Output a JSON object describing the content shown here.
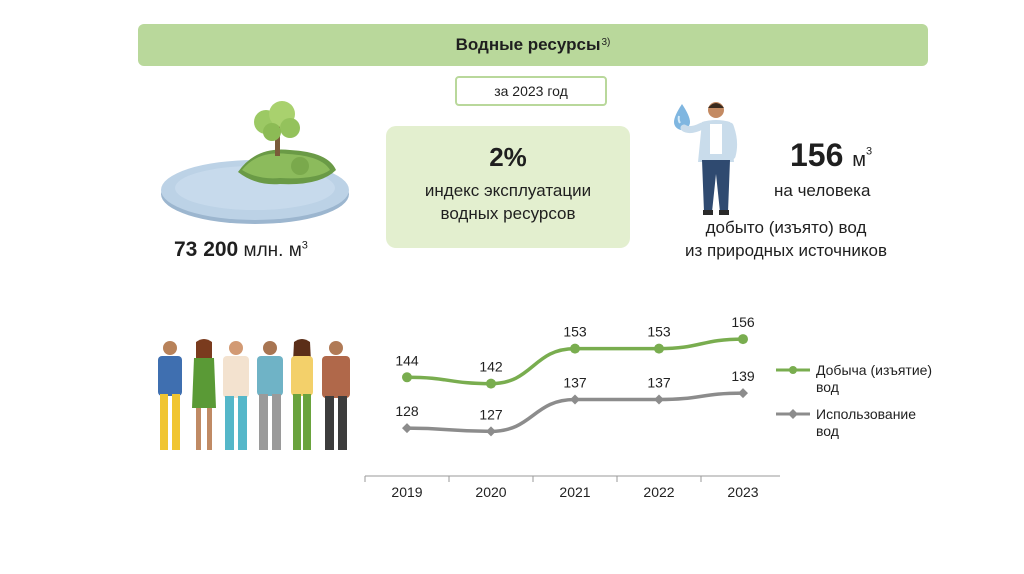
{
  "header": {
    "title": "Водные ресурсы",
    "footnote": "3)"
  },
  "period": "за 2023 год",
  "index": {
    "value": "2%",
    "line1": "индекс эксплуатации",
    "line2": "водных ресурсов"
  },
  "resources": {
    "value": "73 200",
    "unit": "млн. м",
    "unit_sup": "3"
  },
  "per_capita": {
    "value": "156",
    "unit": "м",
    "unit_sup": "3",
    "label": "на человека"
  },
  "extracted": {
    "line1": "добыто (изъято) вод",
    "line2": "из природных источников"
  },
  "colors": {
    "header_bg": "#b9d89b",
    "box_bg": "#e3efcf",
    "green": "#79ad4f",
    "gray": "#8c8c8c"
  },
  "chart_data": {
    "type": "line",
    "categories": [
      "2019",
      "2020",
      "2021",
      "2022",
      "2023"
    ],
    "series": [
      {
        "name": "Добыча (изъятие) вод",
        "label_line1": "Добыча (изъятие)",
        "label_line2": "вод",
        "color": "#79ad4f",
        "values": [
          144,
          142,
          153,
          153,
          156
        ]
      },
      {
        "name": "Использование вод",
        "label_line1": "Использование",
        "label_line2": "вод",
        "color": "#8c8c8c",
        "values": [
          128,
          127,
          137,
          137,
          139
        ]
      }
    ],
    "ylim": [
      118,
      162
    ],
    "grid": false,
    "legend": "right"
  }
}
